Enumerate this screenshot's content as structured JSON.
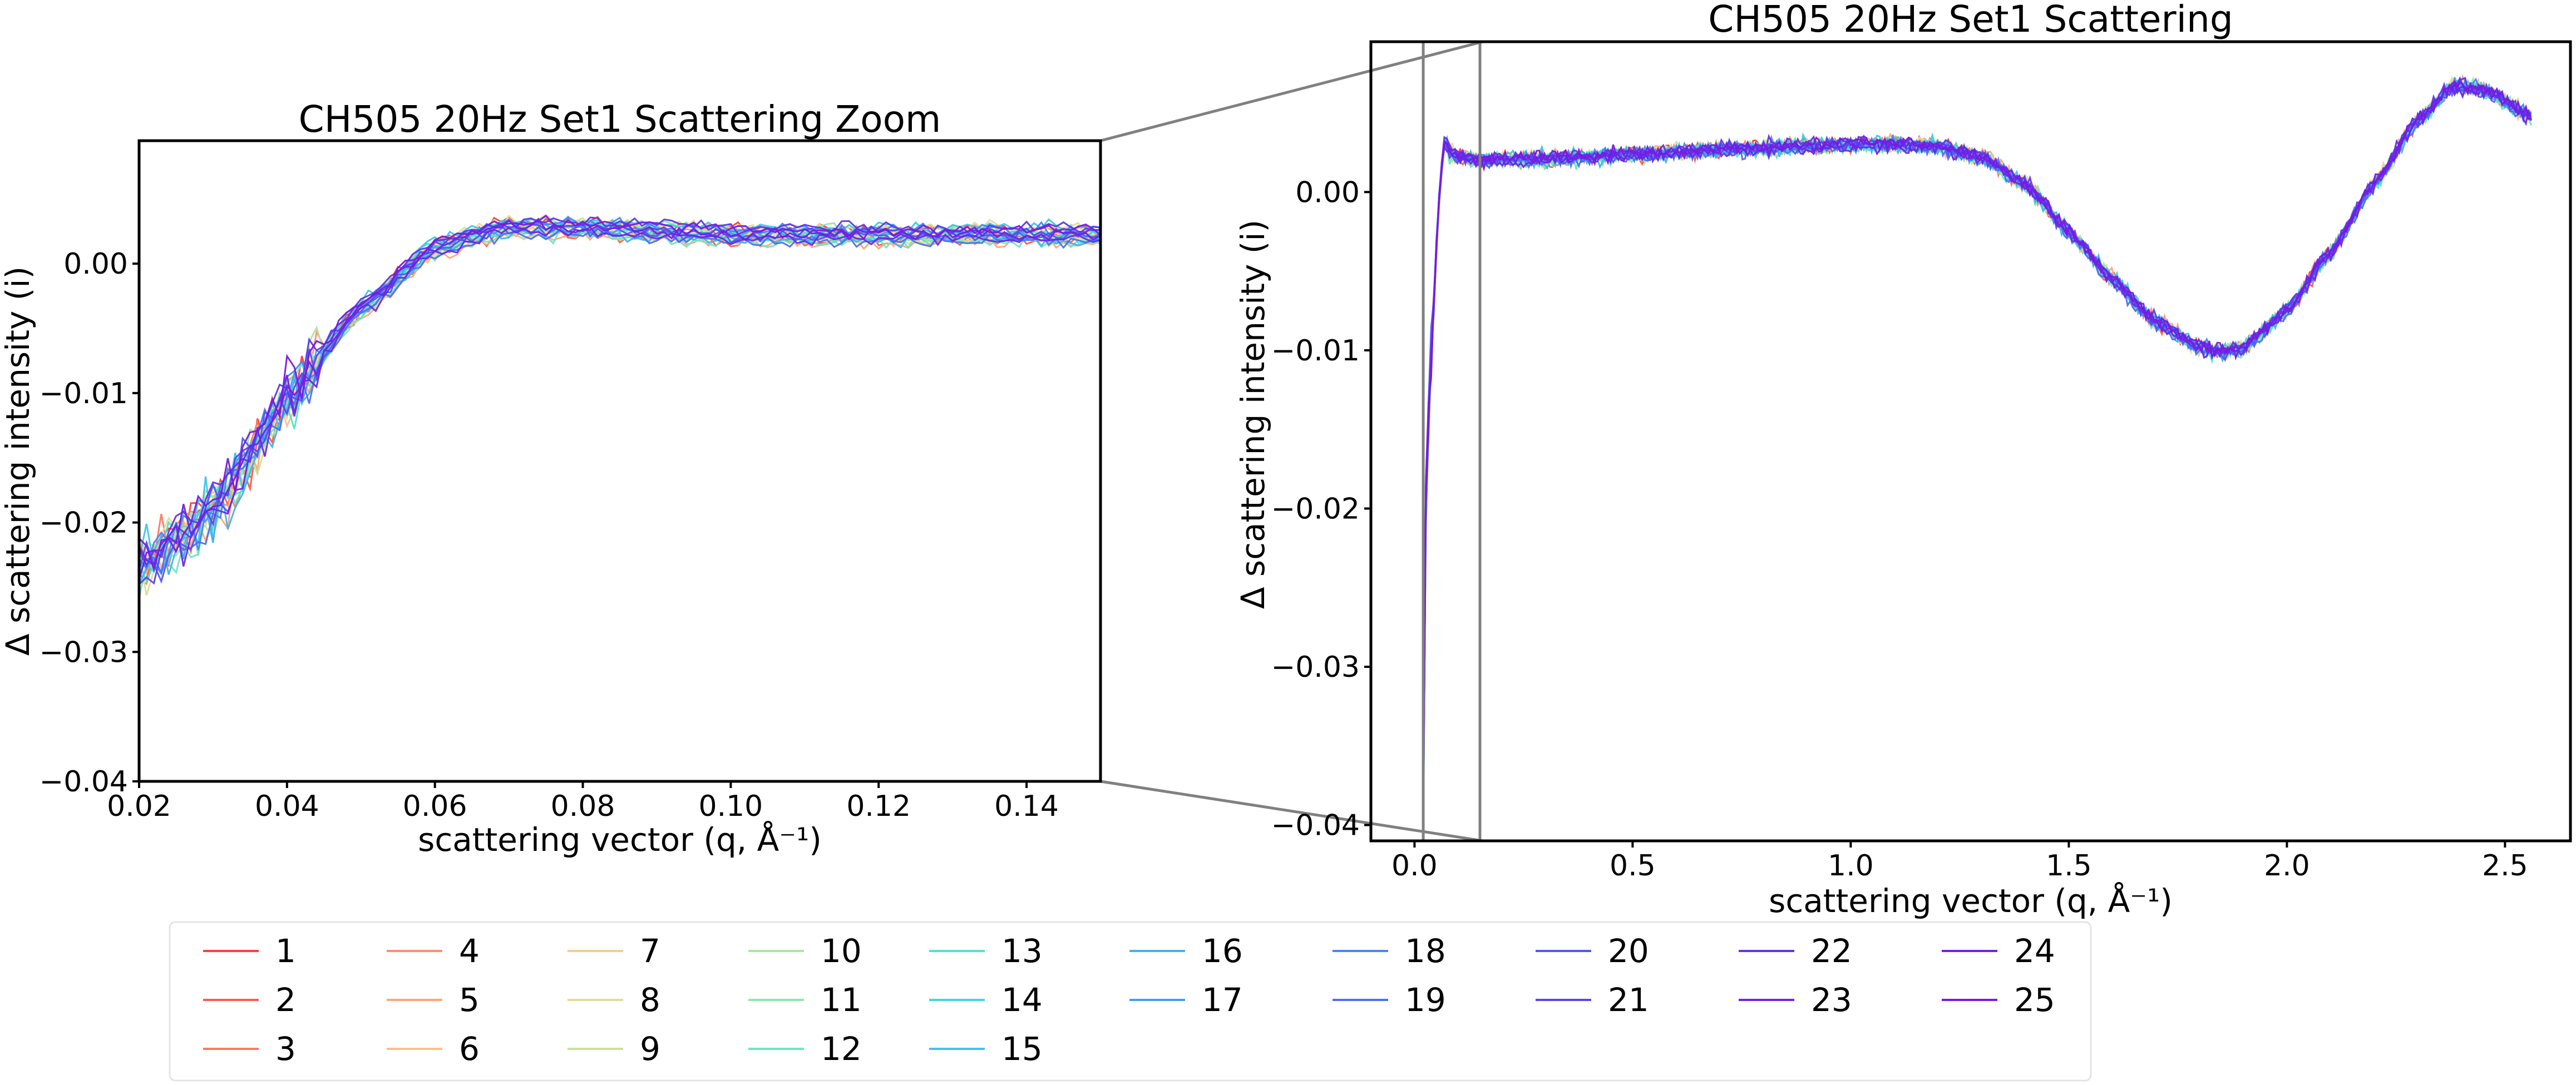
{
  "chart_data": [
    {
      "type": "line",
      "title": "CH505 20Hz Set1 Scattering Zoom",
      "xlabel": "scattering vector (q, Å⁻¹)",
      "ylabel": "Δ scattering intensity (i)",
      "xlim": [
        0.02,
        0.15
      ],
      "ylim": [
        -0.04,
        0.0095
      ],
      "x_ticks": [
        "0.02",
        "0.04",
        "0.06",
        "0.08",
        "0.10",
        "0.12",
        "0.14"
      ],
      "y_ticks": [
        "0.00",
        "−0.01",
        "−0.02",
        "−0.03",
        "−0.04"
      ],
      "grid": false,
      "profile": {
        "x": [
          0.02,
          0.03,
          0.04,
          0.05,
          0.06,
          0.07,
          0.08,
          0.1,
          0.12,
          0.15
        ],
        "y": [
          -0.0235,
          -0.019,
          -0.0105,
          -0.0035,
          0.0012,
          0.0028,
          0.0027,
          0.0022,
          0.0022,
          0.0022
        ]
      }
    },
    {
      "type": "line",
      "title": "CH505 20Hz Set1 Scattering",
      "xlabel": "scattering vector (q, Å⁻¹)",
      "ylabel": "Δ scattering intensity (i)",
      "xlim": [
        -0.1,
        2.65
      ],
      "ylim": [
        -0.041,
        0.0095
      ],
      "x_ticks": [
        "0.0",
        "0.5",
        "1.0",
        "1.5",
        "2.0",
        "2.5"
      ],
      "y_ticks": [
        "0.00",
        "−0.01",
        "−0.02",
        "−0.03",
        "−0.04"
      ],
      "grid": false,
      "zoom_region": [
        0.02,
        0.15
      ],
      "profile": {
        "x": [
          0.02,
          0.025,
          0.03,
          0.04,
          0.05,
          0.06,
          0.07,
          0.08,
          0.1,
          0.15,
          0.3,
          0.5,
          0.8,
          1.0,
          1.1,
          1.2,
          1.3,
          1.4,
          1.5,
          1.6,
          1.7,
          1.8,
          1.85,
          1.9,
          2.0,
          2.1,
          2.2,
          2.3,
          2.38,
          2.45,
          2.56
        ],
        "y": [
          -0.039,
          -0.02,
          -0.015,
          -0.0095,
          -0.0035,
          0.0012,
          0.0033,
          0.0025,
          0.0022,
          0.002,
          0.0021,
          0.0024,
          0.0028,
          0.003,
          0.003,
          0.0029,
          0.0022,
          0.0005,
          -0.0025,
          -0.0055,
          -0.0082,
          -0.0098,
          -0.0101,
          -0.0098,
          -0.0075,
          -0.0038,
          0.0005,
          0.0045,
          0.0067,
          0.0065,
          0.0048
        ]
      }
    }
  ],
  "legend": {
    "placement": "bottom-left",
    "items": [
      "1",
      "2",
      "3",
      "4",
      "5",
      "6",
      "7",
      "8",
      "9",
      "10",
      "11",
      "12",
      "13",
      "14",
      "15",
      "16",
      "17",
      "18",
      "19",
      "20",
      "21",
      "22",
      "23",
      "24",
      "25"
    ],
    "colors": [
      "#ff3e3e",
      "#ff5a4a",
      "#ff7860",
      "#ff8e6c",
      "#ffa67a",
      "#ffbe8c",
      "#f3cd91",
      "#e1db98",
      "#c8e19b",
      "#aee59f",
      "#8ee7ab",
      "#6de8bd",
      "#52e2ce",
      "#42d6dc",
      "#3ec6e6",
      "#42b2ee",
      "#479cf2",
      "#4a85f3",
      "#4e6ff2",
      "#5258ef",
      "#5a44ec",
      "#6235e8",
      "#6a28e6",
      "#7220e3",
      "#7b18e0"
    ]
  }
}
